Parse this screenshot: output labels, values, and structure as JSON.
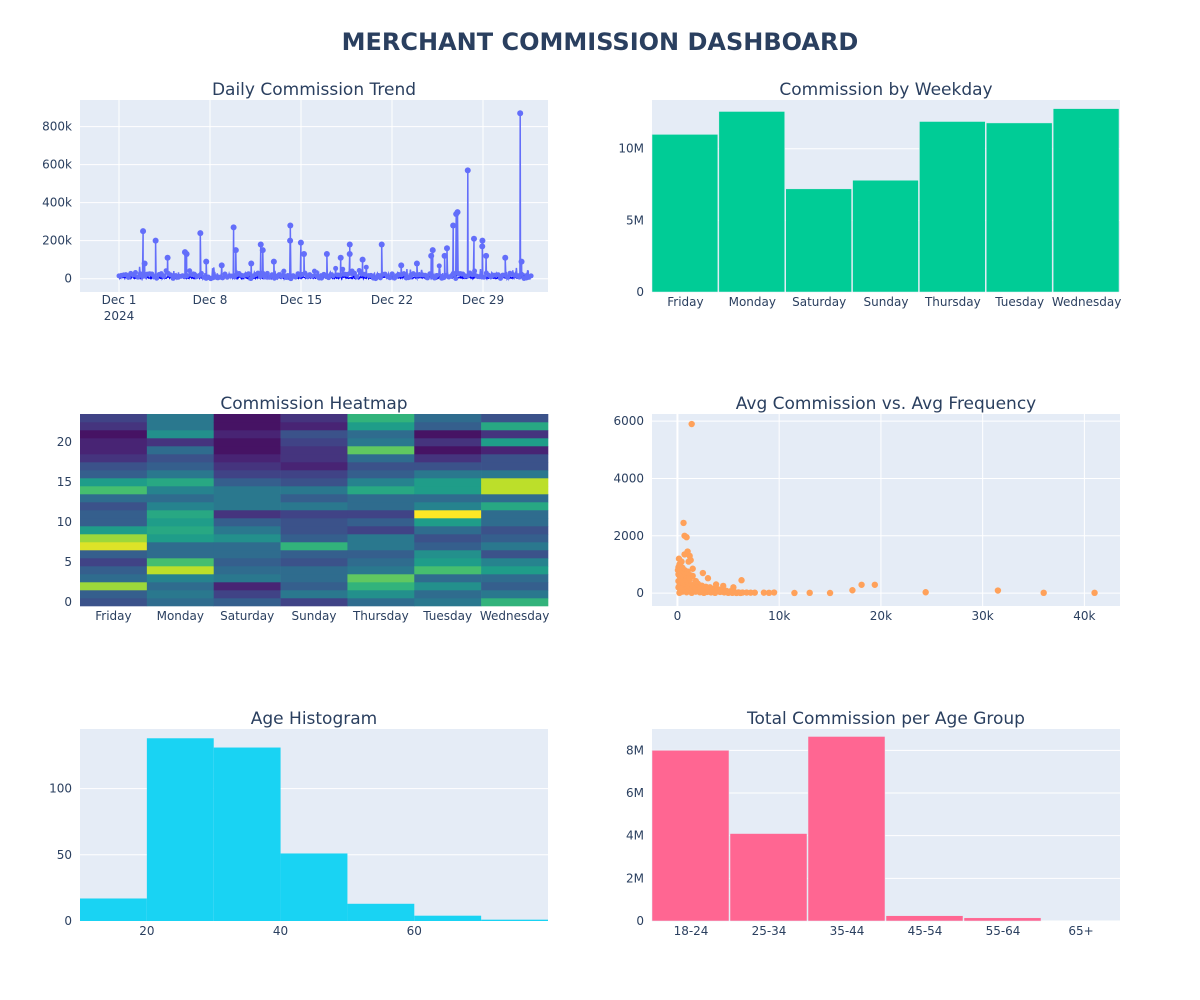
{
  "dashboard": {
    "title": "MERCHANT COMMISSION DASHBOARD"
  },
  "colors": {
    "plot_bg": "#e5ecf6",
    "grid": "#ffffff",
    "title": "#2a3f5f",
    "tick": "#2a3f5f",
    "line": "#636efa",
    "line_base": "#0000ff",
    "weekday_bar": "#00cc96",
    "scatter": "#ffa15a",
    "age_hist": "#19d3f3",
    "age_group_bar": "#ff6692"
  },
  "chart_data": [
    {
      "id": "daily",
      "type": "line",
      "title": "Daily Commission Trend",
      "x_range": [
        "2024-11-28",
        "2025-01-03"
      ],
      "ylim": [
        -70000,
        940000
      ],
      "x_ticks": [
        {
          "date": "2024-12-01",
          "label": "Dec 1",
          "sublabel": "2024"
        },
        {
          "date": "2024-12-08",
          "label": "Dec 8"
        },
        {
          "date": "2024-12-15",
          "label": "Dec 15"
        },
        {
          "date": "2024-12-22",
          "label": "Dec 22"
        },
        {
          "date": "2024-12-29",
          "label": "Dec 29"
        }
      ],
      "y_ticks": [
        {
          "value": 0,
          "label": "0"
        },
        {
          "value": 200000,
          "label": "200k"
        },
        {
          "value": 400000,
          "label": "400k"
        },
        {
          "value": 600000,
          "label": "600k"
        },
        {
          "value": 800000,
          "label": "800k"
        }
      ],
      "start": "2024-12-01",
      "end": "2025-01-01",
      "peaks": [
        {
          "date": "2024-12-03",
          "value": 250000
        },
        {
          "date": "2024-12-03",
          "value": 80000
        },
        {
          "date": "2024-12-04",
          "value": 200000
        },
        {
          "date": "2024-12-05",
          "value": 110000
        },
        {
          "date": "2024-12-06",
          "value": 130000
        },
        {
          "date": "2024-12-06",
          "value": 140000
        },
        {
          "date": "2024-12-07",
          "value": 240000
        },
        {
          "date": "2024-12-08",
          "value": 90000
        },
        {
          "date": "2024-12-09",
          "value": 70000
        },
        {
          "date": "2024-12-10",
          "value": 270000
        },
        {
          "date": "2024-12-10",
          "value": 150000
        },
        {
          "date": "2024-12-11",
          "value": 80000
        },
        {
          "date": "2024-12-12",
          "value": 180000
        },
        {
          "date": "2024-12-12",
          "value": 150000
        },
        {
          "date": "2024-12-13",
          "value": 90000
        },
        {
          "date": "2024-12-14",
          "value": 200000
        },
        {
          "date": "2024-12-14",
          "value": 280000
        },
        {
          "date": "2024-12-15",
          "value": 190000
        },
        {
          "date": "2024-12-15",
          "value": 130000
        },
        {
          "date": "2024-12-17",
          "value": 130000
        },
        {
          "date": "2024-12-18",
          "value": 110000
        },
        {
          "date": "2024-12-19",
          "value": 180000
        },
        {
          "date": "2024-12-19",
          "value": 130000
        },
        {
          "date": "2024-12-20",
          "value": 100000
        },
        {
          "date": "2024-12-21",
          "value": 180000
        },
        {
          "date": "2024-12-23",
          "value": 70000
        },
        {
          "date": "2024-12-24",
          "value": 80000
        },
        {
          "date": "2024-12-25",
          "value": 120000
        },
        {
          "date": "2024-12-25",
          "value": 150000
        },
        {
          "date": "2024-12-26",
          "value": 160000
        },
        {
          "date": "2024-12-26",
          "value": 120000
        },
        {
          "date": "2024-12-27",
          "value": 350000
        },
        {
          "date": "2024-12-27",
          "value": 280000
        },
        {
          "date": "2024-12-27",
          "value": 340000
        },
        {
          "date": "2024-12-28",
          "value": 210000
        },
        {
          "date": "2024-12-28",
          "value": 570000
        },
        {
          "date": "2024-12-29",
          "value": 170000
        },
        {
          "date": "2024-12-29",
          "value": 200000
        },
        {
          "date": "2024-12-29",
          "value": 120000
        },
        {
          "date": "2024-12-31",
          "value": 110000
        },
        {
          "date": "2025-01-01",
          "value": 870000
        },
        {
          "date": "2025-01-01",
          "value": 90000
        }
      ]
    },
    {
      "id": "weekday",
      "type": "bar",
      "title": "Commission by Weekday",
      "categories": [
        "Friday",
        "Monday",
        "Saturday",
        "Sunday",
        "Thursday",
        "Tuesday",
        "Wednesday"
      ],
      "values": [
        11000000,
        12600000,
        7200000,
        7800000,
        11900000,
        11800000,
        12800000
      ],
      "ylim": [
        0,
        13400000
      ],
      "y_ticks": [
        {
          "value": 0,
          "label": "0"
        },
        {
          "value": 5000000,
          "label": "5M"
        },
        {
          "value": 10000000,
          "label": "10M"
        }
      ]
    },
    {
      "id": "heatmap",
      "type": "heatmap",
      "title": "Commission Heatmap",
      "categories": [
        "Friday",
        "Monday",
        "Saturday",
        "Sunday",
        "Thursday",
        "Tuesday",
        "Wednesday"
      ],
      "hours": [
        0,
        1,
        2,
        3,
        4,
        5,
        6,
        7,
        8,
        9,
        10,
        11,
        12,
        13,
        14,
        15,
        16,
        17,
        18,
        19,
        20,
        21,
        22,
        23
      ],
      "y_ticks": [
        {
          "value": 0,
          "label": "0"
        },
        {
          "value": 5,
          "label": "5"
        },
        {
          "value": 10,
          "label": "10"
        },
        {
          "value": 15,
          "label": "15"
        },
        {
          "value": 20,
          "label": "20"
        }
      ],
      "z": [
        [
          0.25,
          0.3,
          0.85,
          0.35,
          0.3,
          0.2,
          0.3,
          0.95,
          0.85,
          0.55,
          0.3,
          0.3,
          0.25,
          0.35,
          0.7,
          0.55,
          0.3,
          0.25,
          0.15,
          0.1,
          0.1,
          0.05,
          0.15,
          0.2
        ],
        [
          0.35,
          0.4,
          0.35,
          0.45,
          0.9,
          0.7,
          0.35,
          0.35,
          0.55,
          0.6,
          0.55,
          0.6,
          0.45,
          0.35,
          0.45,
          0.6,
          0.4,
          0.3,
          0.25,
          0.35,
          0.15,
          0.5,
          0.4,
          0.4
        ],
        [
          0.3,
          0.2,
          0.1,
          0.4,
          0.35,
          0.3,
          0.35,
          0.35,
          0.5,
          0.4,
          0.3,
          0.15,
          0.4,
          0.4,
          0.4,
          0.3,
          0.2,
          0.15,
          0.1,
          0.05,
          0.05,
          0.1,
          0.05,
          0.05
        ],
        [
          0.2,
          0.4,
          0.3,
          0.35,
          0.35,
          0.25,
          0.3,
          0.65,
          0.3,
          0.25,
          0.25,
          0.2,
          0.4,
          0.3,
          0.4,
          0.25,
          0.2,
          0.1,
          0.15,
          0.15,
          0.2,
          0.25,
          0.1,
          0.15
        ],
        [
          0.35,
          0.5,
          0.65,
          0.75,
          0.4,
          0.35,
          0.3,
          0.4,
          0.4,
          0.2,
          0.3,
          0.2,
          0.35,
          0.35,
          0.6,
          0.45,
          0.3,
          0.25,
          0.35,
          0.75,
          0.4,
          0.35,
          0.55,
          0.65
        ],
        [
          0.4,
          0.35,
          0.5,
          0.35,
          0.7,
          0.55,
          0.5,
          0.3,
          0.25,
          0.35,
          0.55,
          1.0,
          0.45,
          0.35,
          0.55,
          0.55,
          0.4,
          0.25,
          0.15,
          0.05,
          0.15,
          0.05,
          0.3,
          0.35
        ],
        [
          0.65,
          0.4,
          0.3,
          0.35,
          0.55,
          0.45,
          0.25,
          0.4,
          0.3,
          0.25,
          0.35,
          0.35,
          0.6,
          0.35,
          0.9,
          0.9,
          0.4,
          0.25,
          0.25,
          0.1,
          0.55,
          0.15,
          0.6,
          0.25
        ]
      ]
    },
    {
      "id": "scatter",
      "type": "scatter",
      "title": "Avg Commission vs. Avg Frequency",
      "xlim": [
        -2500,
        43500
      ],
      "ylim": [
        -450,
        6250
      ],
      "x_ticks": [
        {
          "value": 0,
          "label": "0"
        },
        {
          "value": 10000,
          "label": "10k"
        },
        {
          "value": 20000,
          "label": "20k"
        },
        {
          "value": 30000,
          "label": "30k"
        },
        {
          "value": 40000,
          "label": "40k"
        }
      ],
      "y_ticks": [
        {
          "value": 0,
          "label": "0"
        },
        {
          "value": 2000,
          "label": "2000"
        },
        {
          "value": 4000,
          "label": "4000"
        },
        {
          "value": 6000,
          "label": "6000"
        }
      ],
      "points": [
        [
          1400,
          5900
        ],
        [
          600,
          2450
        ],
        [
          700,
          2000
        ],
        [
          900,
          1950
        ],
        [
          1000,
          1450
        ],
        [
          700,
          1350
        ],
        [
          1300,
          1150
        ],
        [
          1100,
          1100
        ],
        [
          400,
          1100
        ],
        [
          200,
          1000
        ],
        [
          300,
          950
        ],
        [
          100,
          900
        ],
        [
          500,
          880
        ],
        [
          1500,
          850
        ],
        [
          700,
          800
        ],
        [
          1000,
          750
        ],
        [
          300,
          700
        ],
        [
          100,
          650
        ],
        [
          800,
          650
        ],
        [
          1300,
          620
        ],
        [
          1500,
          600
        ],
        [
          200,
          600
        ],
        [
          600,
          550
        ],
        [
          900,
          500
        ],
        [
          1200,
          480
        ],
        [
          400,
          450
        ],
        [
          100,
          420
        ],
        [
          1800,
          420
        ],
        [
          700,
          400
        ],
        [
          300,
          380
        ],
        [
          1100,
          350
        ],
        [
          2000,
          330
        ],
        [
          500,
          320
        ],
        [
          1600,
          300
        ],
        [
          900,
          280
        ],
        [
          200,
          260
        ],
        [
          2400,
          260
        ],
        [
          1300,
          240
        ],
        [
          600,
          220
        ],
        [
          2800,
          220
        ],
        [
          100,
          200
        ],
        [
          1900,
          200
        ],
        [
          3200,
          200
        ],
        [
          800,
          180
        ],
        [
          1500,
          170
        ],
        [
          400,
          160
        ],
        [
          2200,
          160
        ],
        [
          3600,
          150
        ],
        [
          1000,
          140
        ],
        [
          2600,
          130
        ],
        [
          4000,
          130
        ],
        [
          300,
          120
        ],
        [
          1700,
          110
        ],
        [
          3000,
          110
        ],
        [
          4400,
          100
        ],
        [
          700,
          90
        ],
        [
          2000,
          90
        ],
        [
          3400,
          90
        ],
        [
          4800,
          80
        ],
        [
          1200,
          70
        ],
        [
          2400,
          70
        ],
        [
          3800,
          60
        ],
        [
          5200,
          60
        ],
        [
          500,
          50
        ],
        [
          1800,
          50
        ],
        [
          2900,
          40
        ],
        [
          4200,
          40
        ],
        [
          5600,
          40
        ],
        [
          900,
          30
        ],
        [
          2200,
          30
        ],
        [
          3300,
          25
        ],
        [
          4600,
          25
        ],
        [
          6000,
          25
        ],
        [
          6400,
          20
        ],
        [
          6800,
          20
        ],
        [
          7200,
          15
        ],
        [
          7600,
          15
        ],
        [
          200,
          10
        ],
        [
          1400,
          10
        ],
        [
          2600,
          10
        ],
        [
          3700,
          10
        ],
        [
          5000,
          10
        ],
        [
          5400,
          10
        ],
        [
          5800,
          5
        ],
        [
          6200,
          5
        ],
        [
          8500,
          15
        ],
        [
          9000,
          10
        ],
        [
          9500,
          20
        ],
        [
          11500,
          5
        ],
        [
          13000,
          10
        ],
        [
          15000,
          5
        ],
        [
          17200,
          100
        ],
        [
          18100,
          290
        ],
        [
          19400,
          290
        ],
        [
          24400,
          30
        ],
        [
          31500,
          90
        ],
        [
          36000,
          10
        ],
        [
          41000,
          10
        ],
        [
          3000,
          520
        ],
        [
          6300,
          450
        ],
        [
          4500,
          250
        ],
        [
          5500,
          200
        ],
        [
          3800,
          300
        ],
        [
          2500,
          700
        ],
        [
          1200,
          1300
        ],
        [
          150,
          1200
        ],
        [
          50,
          800
        ]
      ]
    },
    {
      "id": "age",
      "type": "bar",
      "title": "Age Histogram",
      "bins": [
        [
          10,
          20
        ],
        [
          20,
          30
        ],
        [
          30,
          40
        ],
        [
          40,
          50
        ],
        [
          50,
          60
        ],
        [
          60,
          70
        ],
        [
          70,
          80
        ]
      ],
      "values": [
        17,
        138,
        131,
        51,
        13,
        4,
        1
      ],
      "xlim": [
        10,
        80
      ],
      "ylim": [
        0,
        145
      ],
      "x_ticks": [
        {
          "value": 20,
          "label": "20"
        },
        {
          "value": 40,
          "label": "40"
        },
        {
          "value": 60,
          "label": "60"
        }
      ],
      "y_ticks": [
        {
          "value": 0,
          "label": "0"
        },
        {
          "value": 50,
          "label": "50"
        },
        {
          "value": 100,
          "label": "100"
        }
      ]
    },
    {
      "id": "agegroup",
      "type": "bar",
      "title": "Total Commission per Age Group",
      "categories": [
        "18-24",
        "25-34",
        "35-44",
        "45-54",
        "55-64",
        "65+"
      ],
      "values": [
        8000000,
        4100000,
        8650000,
        250000,
        150000,
        0
      ],
      "ylim": [
        0,
        9000000
      ],
      "y_ticks": [
        {
          "value": 0,
          "label": "0"
        },
        {
          "value": 2000000,
          "label": "2M"
        },
        {
          "value": 4000000,
          "label": "4M"
        },
        {
          "value": 6000000,
          "label": "6M"
        },
        {
          "value": 8000000,
          "label": "8M"
        }
      ]
    }
  ]
}
